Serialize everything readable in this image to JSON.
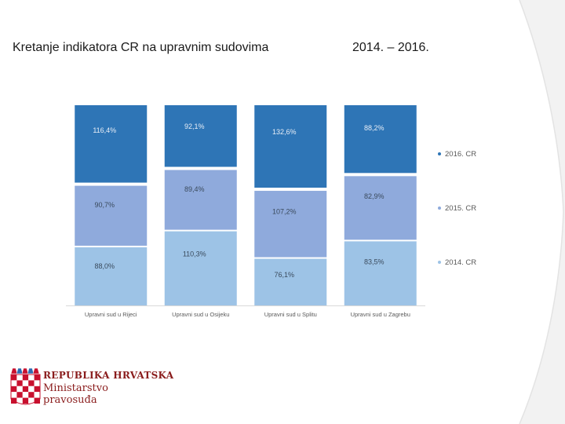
{
  "slide": {
    "title": "Kretanje indikatora CR na upravnim sudovima",
    "years": "2014. – 2016."
  },
  "logo": {
    "line1": "REPUBLIKA HRVATSKA",
    "line2": "Ministarstvo",
    "line3": "pravosuđa",
    "colors": {
      "red": "#c8102e",
      "white": "#ffffff",
      "text": "#8a1c1c"
    }
  },
  "chart_data": {
    "type": "bar",
    "stacked": true,
    "categories": [
      "Upravni sud u Rijeci",
      "Upravni sud u Osijeku",
      "Upravni sud u Splitu",
      "Upravni sud u Zagrebu"
    ],
    "series": [
      {
        "name": "2014. CR",
        "values": [
          88.0,
          110.3,
          76.1,
          83.5
        ],
        "labels": [
          "88,0%",
          "110,3%",
          "76,1%",
          "83,5%"
        ],
        "color": "#9dc3e6"
      },
      {
        "name": "2015. CR",
        "values": [
          90.7,
          89.4,
          107.2,
          82.9
        ],
        "labels": [
          "90,7%",
          "89,4%",
          "107,2%",
          "82,9%"
        ],
        "color": "#8faadc"
      },
      {
        "name": "2016. CR",
        "values": [
          116.4,
          92.1,
          132.6,
          88.2
        ],
        "labels": [
          "116,4%",
          "92,1%",
          "132,6%",
          "88,2%"
        ],
        "color": "#2e75b6"
      }
    ],
    "legend_position": "right",
    "legend_order": [
      "2016. CR",
      "2015. CR",
      "2014. CR"
    ],
    "grid": false
  }
}
